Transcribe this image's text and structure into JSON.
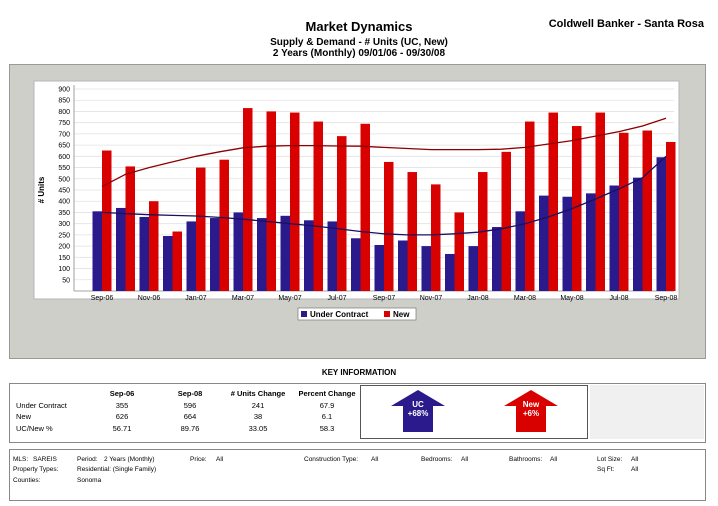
{
  "header": {
    "title": "Market Dynamics",
    "subtitle1": "Supply & Demand - # Units (UC, New)",
    "subtitle2": "2 Years (Monthly) 09/01/06 - 09/30/08",
    "company": "Coldwell Banker - Santa Rosa"
  },
  "chart_data": {
    "type": "bar",
    "ylabel": "# Units",
    "ylim": [
      0,
      900
    ],
    "yticks": [
      50,
      100,
      150,
      200,
      250,
      300,
      350,
      400,
      450,
      500,
      550,
      600,
      650,
      700,
      750,
      800,
      850,
      900
    ],
    "x_tick_labels": [
      "Sep-06",
      "Nov-06",
      "Jan-07",
      "Mar-07",
      "May-07",
      "Jul-07",
      "Sep-07",
      "Nov-07",
      "Jan-08",
      "Mar-08",
      "May-08",
      "Jul-08",
      "Sep-08"
    ],
    "categories": [
      "Sep-06",
      "Oct-06",
      "Nov-06",
      "Dec-06",
      "Jan-07",
      "Feb-07",
      "Mar-07",
      "Apr-07",
      "May-07",
      "Jun-07",
      "Jul-07",
      "Aug-07",
      "Sep-07",
      "Oct-07",
      "Nov-07",
      "Dec-07",
      "Jan-08",
      "Feb-08",
      "Mar-08",
      "Apr-08",
      "May-08",
      "Jun-08",
      "Jul-08",
      "Aug-08",
      "Sep-08"
    ],
    "series": [
      {
        "name": "Under Contract",
        "color": "#2a1a8c",
        "values": [
          355,
          370,
          330,
          245,
          310,
          325,
          350,
          325,
          335,
          315,
          310,
          235,
          205,
          225,
          200,
          165,
          200,
          285,
          355,
          425,
          420,
          435,
          470,
          505,
          596
        ],
        "trend": [
          350,
          345,
          340,
          337,
          334,
          328,
          320,
          310,
          300,
          290,
          278,
          265,
          255,
          250,
          250,
          255,
          262,
          277,
          300,
          330,
          367,
          410,
          455,
          505,
          600
        ]
      },
      {
        "name": "New",
        "color": "#d90000",
        "values": [
          626,
          555,
          400,
          265,
          550,
          585,
          815,
          800,
          795,
          755,
          690,
          745,
          575,
          530,
          475,
          350,
          530,
          620,
          755,
          795,
          735,
          795,
          705,
          715,
          664
        ],
        "trend": [
          465,
          520,
          550,
          575,
          600,
          620,
          638,
          645,
          648,
          648,
          646,
          645,
          640,
          635,
          630,
          630,
          630,
          632,
          640,
          655,
          670,
          690,
          710,
          735,
          770
        ]
      }
    ],
    "legend": "bottom",
    "grid": true
  },
  "key": {
    "title": "KEY INFORMATION",
    "headers": [
      "",
      "Sep-06",
      "Sep-08",
      "# Units Change",
      "Percent Change"
    ],
    "rows": [
      [
        "Under Contract",
        "355",
        "596",
        "241",
        "67.9"
      ],
      [
        "New",
        "626",
        "664",
        "38",
        "6.1"
      ],
      [
        "UC/New %",
        "56.71",
        "89.76",
        "33.05",
        "58.3"
      ]
    ],
    "uc_arrow": {
      "label": "UC",
      "value": "+68%",
      "color": "#2a1a8c"
    },
    "new_arrow": {
      "label": "New",
      "value": "+6%",
      "color": "#d90000"
    }
  },
  "criteria": {
    "mls_label": "MLS:",
    "mls": "SAREIS",
    "period_label": "Period:",
    "period": "2 Years (Monthly)",
    "price_label": "Price:",
    "price": "All",
    "construction_label": "Construction Type:",
    "construction": "All",
    "bedrooms_label": "Bedrooms:",
    "bedrooms": "All",
    "bathrooms_label": "Bathrooms:",
    "bathrooms": "All",
    "lotsize_label": "Lot Size:",
    "lotsize": "All",
    "sqft_label": "Sq Ft:",
    "sqft": "All",
    "proptypes_label": "Property Types:",
    "proptypes": "Residential: (Single Family)",
    "counties_label": "Counties:",
    "counties": "Sonoma"
  }
}
